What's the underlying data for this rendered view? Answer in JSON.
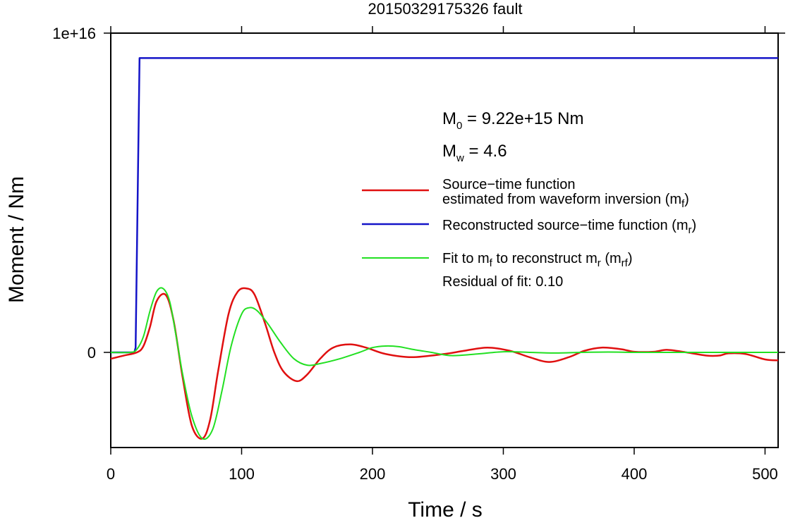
{
  "chart_data": {
    "type": "line",
    "title": "20150329175326 fault",
    "xlabel": "Time / s",
    "ylabel": "Moment / Nm",
    "xlim": [
      0,
      510
    ],
    "ylim": [
      -3000000000000000.0,
      1e+16
    ],
    "xticks": [
      0,
      100,
      200,
      300,
      400,
      500
    ],
    "xtick_labels": [
      "0",
      "100",
      "200",
      "300",
      "400",
      "500"
    ],
    "yticks": [
      0,
      1e+16
    ],
    "ytick_labels": [
      "0",
      "1e+16"
    ],
    "grid": false,
    "legend_position": "right",
    "annotations": {
      "m0_main": "M",
      "m0_sub": "0",
      "m0_value": " = 9.22e+15 Nm",
      "mw_main": "M",
      "mw_sub": "w",
      "mw_value": " = 4.6",
      "residual": "Residual of fit: 0.10"
    },
    "legend": [
      {
        "line1": "Source−time function",
        "line2": "estimated from waveform inversion (m",
        "sub": "f",
        "tail": ")",
        "color": "#e01010"
      },
      {
        "line1": "Reconstructed source−time function (m",
        "sub": "r",
        "tail": ")",
        "color": "#1414c8"
      },
      {
        "line1a": "Fit to m",
        "sub1": "f",
        "line1b": " to reconstruct m",
        "sub2": "r",
        "line1c": " (m",
        "sub3": "rf",
        "tail": ")",
        "color": "#22e022"
      }
    ],
    "series": [
      {
        "name": "Reconstructed source−time function (mr)",
        "color": "#1414c8",
        "x": [
          0,
          18,
          19,
          22,
          510
        ],
        "y": [
          0,
          0,
          150000000000000.0,
          9220000000000000.0,
          9220000000000000.0
        ]
      },
      {
        "name": "Source−time function estimated from waveform inversion (mf)",
        "color": "#e01010",
        "x": [
          0,
          10,
          20,
          25,
          30,
          35,
          42,
          48,
          55,
          62,
          70,
          76,
          82,
          90,
          97,
          104,
          110,
          118,
          125,
          132,
          142,
          150,
          160,
          170,
          183,
          195,
          210,
          230,
          255,
          270,
          288,
          305,
          320,
          335,
          350,
          362,
          375,
          390,
          400,
          415,
          425,
          440,
          455,
          465,
          472,
          485,
          500,
          510
        ],
        "y": [
          -200000000000000.0,
          -100000000000000.0,
          0,
          200000000000000.0,
          800000000000000.0,
          1600000000000000.0,
          1800000000000000.0,
          1000000000000000.0,
          -800000000000000.0,
          -2300000000000000.0,
          -2700000000000000.0,
          -2100000000000000.0,
          -600000000000000.0,
          1200000000000000.0,
          1900000000000000.0,
          2000000000000000.0,
          1800000000000000.0,
          900000000000000.0,
          0.0,
          -600000000000000.0,
          -900000000000000.0,
          -700000000000000.0,
          -200000000000000.0,
          150000000000000.0,
          250000000000000.0,
          150000000000000.0,
          -50000000000000.0,
          -150000000000000.0,
          -50000000000000.0,
          50000000000000.0,
          150000000000000.0,
          50000000000000.0,
          -150000000000000.0,
          -300000000000000.0,
          -150000000000000.0,
          50000000000000.0,
          150000000000000.0,
          100000000000000.0,
          20000000000000.0,
          20000000000000.0,
          80000000000000.0,
          0.0,
          -100000000000000.0,
          -100000000000000.0,
          -30000000000000.0,
          -50000000000000.0,
          -220000000000000.0,
          -250000000000000.0
        ]
      },
      {
        "name": "Fit to mf to reconstruct mr (mrf)",
        "color": "#22e022",
        "x": [
          0,
          15,
          20,
          25,
          30,
          35,
          40,
          45,
          50,
          55,
          62,
          70,
          78,
          85,
          92,
          100,
          106,
          112,
          120,
          130,
          140,
          150,
          160,
          175,
          190,
          200,
          210,
          220,
          230,
          245,
          260,
          280,
          300,
          320,
          340,
          360,
          380,
          400,
          420,
          450,
          480,
          510
        ],
        "y": [
          0,
          0,
          100000000000000.0,
          500000000000000.0,
          1300000000000000.0,
          1900000000000000.0,
          2000000000000000.0,
          1600000000000000.0,
          500000000000000.0,
          -700000000000000.0,
          -2000000000000000.0,
          -2700000000000000.0,
          -2400000000000000.0,
          -1200000000000000.0,
          200000000000000.0,
          1200000000000000.0,
          1400000000000000.0,
          1300000000000000.0,
          900000000000000.0,
          300000000000000.0,
          -200000000000000.0,
          -400000000000000.0,
          -350000000000000.0,
          -200000000000000.0,
          0.0,
          150000000000000.0,
          200000000000000.0,
          180000000000000.0,
          100000000000000.0,
          0.0,
          -100000000000000.0,
          -50000000000000.0,
          20000000000000.0,
          0.0,
          -20000000000000.0,
          0.0,
          10000000000000.0,
          0.0,
          0.0,
          0.0,
          0.0,
          0.0
        ]
      }
    ]
  }
}
